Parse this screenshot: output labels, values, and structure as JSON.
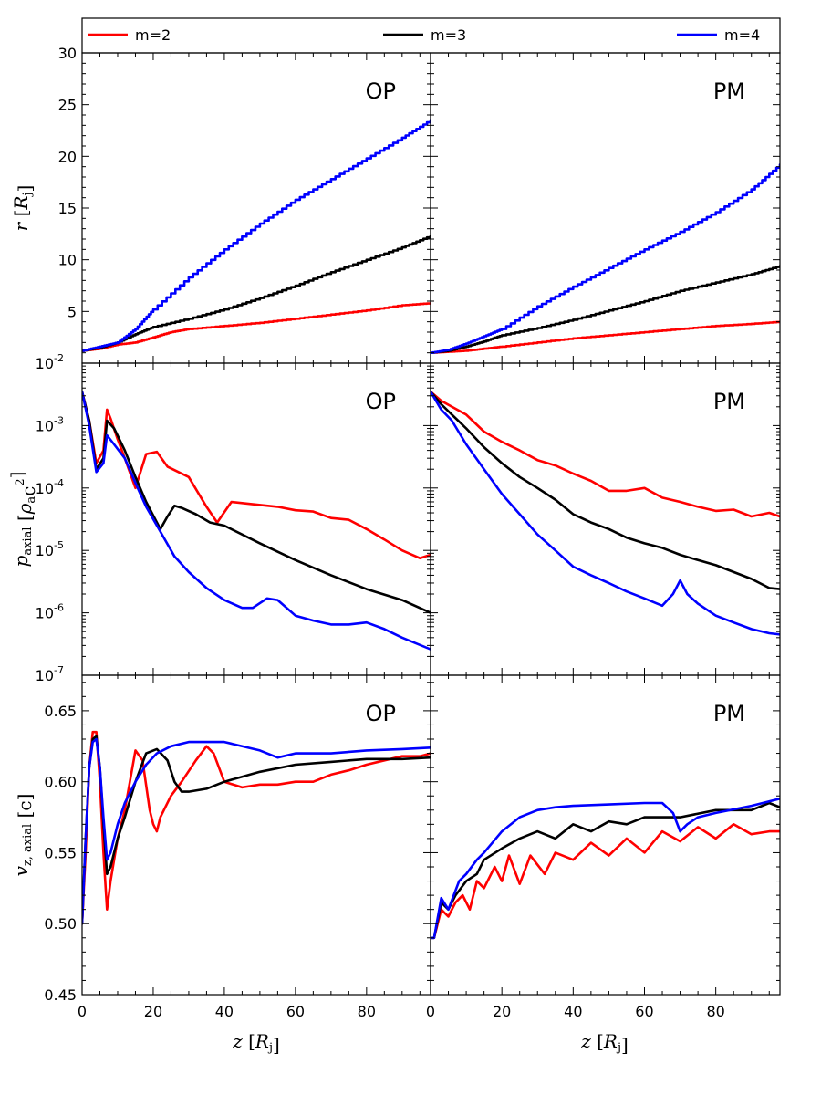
{
  "colors": {
    "m2": "#ff0000",
    "m3": "#000000",
    "m4": "#0000ff"
  },
  "legend": [
    {
      "label": "m=2",
      "color": "#ff0000"
    },
    {
      "label": "m=3",
      "color": "#000000"
    },
    {
      "label": "m=4",
      "color": "#0000ff"
    }
  ],
  "axes": {
    "xlabel": "z [Rj]",
    "xlim": [
      0,
      98
    ],
    "xticks": [
      0,
      20,
      40,
      60,
      80
    ],
    "rows": [
      {
        "ylabel": "r [Rj]",
        "scale": "linear",
        "ylim": [
          0,
          30
        ],
        "yticks": [
          0,
          5,
          10,
          15,
          20,
          25,
          30
        ],
        "ytick_labels": [
          "",
          "5",
          "10",
          "15",
          "20",
          "25",
          "30"
        ]
      },
      {
        "ylabel": "p_axial [ρa c²]",
        "scale": "log",
        "ylim": [
          1e-07,
          0.01
        ],
        "yticks": [
          1e-07,
          1e-06,
          1e-05,
          0.0001,
          0.001,
          0.01
        ],
        "ytick_labels": [
          "10",
          "10",
          "10",
          "10",
          "10",
          "10"
        ],
        "ytick_exps": [
          "-7",
          "-6",
          "-5",
          "-4",
          "-3",
          "-2"
        ]
      },
      {
        "ylabel": "v_z,axial [c]",
        "scale": "linear",
        "ylim": [
          0.45,
          0.675
        ],
        "yticks": [
          0.45,
          0.5,
          0.55,
          0.6,
          0.65
        ],
        "ytick_labels": [
          "0.45",
          "0.50",
          "0.55",
          "0.60",
          "0.65"
        ]
      }
    ]
  },
  "chart_data": [
    {
      "type": "line",
      "panel": "OP",
      "quantity": "r",
      "series": [
        {
          "name": "m=2",
          "x": [
            0,
            5,
            10,
            15,
            20,
            25,
            30,
            40,
            50,
            60,
            70,
            80,
            90,
            98
          ],
          "y": [
            1.2,
            1.4,
            1.8,
            2.0,
            2.5,
            3.0,
            3.3,
            3.6,
            3.9,
            4.3,
            4.7,
            5.1,
            5.6,
            5.8
          ]
        },
        {
          "name": "m=3",
          "x": [
            0,
            5,
            10,
            15,
            20,
            30,
            40,
            50,
            60,
            70,
            80,
            90,
            98
          ],
          "y": [
            1.2,
            1.5,
            2.0,
            2.8,
            3.5,
            4.3,
            5.2,
            6.3,
            7.5,
            8.8,
            10.0,
            11.2,
            12.3
          ]
        },
        {
          "name": "m=4",
          "x": [
            0,
            5,
            10,
            15,
            20,
            30,
            40,
            50,
            60,
            70,
            80,
            90,
            98
          ],
          "y": [
            1.2,
            1.6,
            2.0,
            3.3,
            5.2,
            8.3,
            11.0,
            13.5,
            15.8,
            17.8,
            19.8,
            21.8,
            23.5
          ]
        }
      ]
    },
    {
      "type": "line",
      "panel": "PM",
      "quantity": "r",
      "series": [
        {
          "name": "m=2",
          "x": [
            0,
            5,
            10,
            15,
            20,
            30,
            40,
            50,
            60,
            70,
            80,
            90,
            98
          ],
          "y": [
            1.0,
            1.1,
            1.2,
            1.4,
            1.6,
            2.0,
            2.4,
            2.7,
            3.0,
            3.3,
            3.6,
            3.8,
            4.0
          ]
        },
        {
          "name": "m=3",
          "x": [
            0,
            5,
            10,
            15,
            20,
            30,
            40,
            50,
            60,
            70,
            80,
            90,
            98
          ],
          "y": [
            1.0,
            1.2,
            1.6,
            2.1,
            2.7,
            3.4,
            4.2,
            5.1,
            6.0,
            7.0,
            7.8,
            8.6,
            9.4
          ]
        },
        {
          "name": "m=4",
          "x": [
            0,
            5,
            10,
            15,
            20,
            30,
            40,
            50,
            60,
            70,
            80,
            90,
            98
          ],
          "y": [
            1.0,
            1.3,
            1.9,
            2.6,
            3.3,
            5.5,
            7.4,
            9.2,
            11.0,
            12.7,
            14.6,
            16.8,
            19.2
          ]
        }
      ]
    },
    {
      "type": "line",
      "panel": "OP",
      "quantity": "p_axial",
      "series": [
        {
          "name": "m=2",
          "x": [
            0,
            2,
            4,
            6,
            7,
            8,
            10,
            12,
            15,
            18,
            21,
            24,
            30,
            35,
            38,
            42,
            48,
            55,
            60,
            65,
            70,
            75,
            80,
            85,
            90,
            95,
            98
          ],
          "y": [
            0.0035,
            0.0012,
            0.00025,
            0.0004,
            0.0018,
            0.0013,
            0.0006,
            0.0003,
            0.0001,
            0.00035,
            0.00038,
            0.00022,
            0.00015,
            5e-05,
            2.8e-05,
            6e-05,
            5.5e-05,
            5e-05,
            4.4e-05,
            4.2e-05,
            3.3e-05,
            3.1e-05,
            2.2e-05,
            1.5e-05,
            1e-05,
            7.5e-06,
            8.5e-06
          ]
        },
        {
          "name": "m=3",
          "x": [
            0,
            2,
            4,
            6,
            7,
            9,
            12,
            15,
            18,
            22,
            24,
            26,
            28,
            32,
            36,
            40,
            50,
            60,
            70,
            80,
            90,
            98
          ],
          "y": [
            0.0035,
            0.0012,
            0.0002,
            0.0003,
            0.0012,
            0.0009,
            0.0004,
            0.00015,
            6e-05,
            2.2e-05,
            3.5e-05,
            5.2e-05,
            4.8e-05,
            3.8e-05,
            2.8e-05,
            2.5e-05,
            1.3e-05,
            7e-06,
            4e-06,
            2.4e-06,
            1.6e-06,
            1e-06
          ]
        },
        {
          "name": "m=4",
          "x": [
            0,
            2,
            4,
            6,
            7,
            9,
            12,
            15,
            18,
            22,
            26,
            30,
            35,
            40,
            45,
            48,
            52,
            55,
            60,
            65,
            70,
            75,
            80,
            85,
            90,
            98
          ],
          "y": [
            0.0035,
            0.001,
            0.00018,
            0.00025,
            0.0007,
            0.0005,
            0.0003,
            0.00012,
            5e-05,
            2e-05,
            8e-06,
            4.5e-06,
            2.5e-06,
            1.6e-06,
            1.2e-06,
            1.2e-06,
            1.7e-06,
            1.6e-06,
            9e-07,
            7.5e-07,
            6.5e-07,
            6.5e-07,
            7e-07,
            5.5e-07,
            4e-07,
            2.6e-07
          ]
        }
      ]
    },
    {
      "type": "line",
      "panel": "PM",
      "quantity": "p_axial",
      "series": [
        {
          "name": "m=2",
          "x": [
            0,
            3,
            6,
            10,
            15,
            20,
            25,
            30,
            35,
            40,
            45,
            50,
            55,
            60,
            65,
            70,
            75,
            80,
            85,
            90,
            95,
            98
          ],
          "y": [
            0.0035,
            0.0025,
            0.002,
            0.0015,
            0.0008,
            0.00055,
            0.0004,
            0.00028,
            0.00023,
            0.00017,
            0.00013,
            9e-05,
            9e-05,
            0.0001,
            7e-05,
            6e-05,
            5e-05,
            4.3e-05,
            4.5e-05,
            3.5e-05,
            4e-05,
            3.5e-05
          ]
        },
        {
          "name": "m=3",
          "x": [
            0,
            3,
            6,
            10,
            15,
            20,
            25,
            30,
            35,
            40,
            45,
            50,
            55,
            60,
            65,
            70,
            75,
            80,
            85,
            90,
            95,
            98
          ],
          "y": [
            0.0035,
            0.0022,
            0.0015,
            0.0009,
            0.00045,
            0.00025,
            0.00015,
            0.0001,
            6.5e-05,
            3.8e-05,
            2.8e-05,
            2.2e-05,
            1.6e-05,
            1.3e-05,
            1.1e-05,
            8.5e-06,
            7e-06,
            5.8e-06,
            4.5e-06,
            3.5e-06,
            2.5e-06,
            2.4e-06
          ]
        },
        {
          "name": "m=4",
          "x": [
            0,
            3,
            6,
            10,
            15,
            20,
            25,
            30,
            35,
            40,
            45,
            50,
            55,
            60,
            65,
            68,
            70,
            72,
            75,
            80,
            85,
            90,
            95,
            98
          ],
          "y": [
            0.0035,
            0.0018,
            0.0012,
            0.0005,
            0.0002,
            8e-05,
            3.8e-05,
            1.8e-05,
            1e-05,
            5.5e-06,
            4e-06,
            3e-06,
            2.2e-06,
            1.7e-06,
            1.3e-06,
            2e-06,
            3.3e-06,
            2e-06,
            1.4e-06,
            9e-07,
            7e-07,
            5.5e-07,
            4.7e-07,
            4.5e-07
          ]
        }
      ]
    },
    {
      "type": "line",
      "panel": "OP",
      "quantity": "v_z,axial",
      "series": [
        {
          "name": "m=2",
          "x": [
            0,
            1,
            2,
            3,
            4,
            5,
            6,
            7,
            8,
            10,
            12,
            15,
            17,
            19,
            20,
            21,
            22,
            25,
            28,
            32,
            35,
            37,
            40,
            45,
            50,
            55,
            60,
            65,
            70,
            75,
            80,
            85,
            90,
            95,
            98
          ],
          "y": [
            0.5,
            0.55,
            0.61,
            0.635,
            0.635,
            0.6,
            0.55,
            0.51,
            0.53,
            0.56,
            0.58,
            0.622,
            0.615,
            0.58,
            0.57,
            0.565,
            0.575,
            0.59,
            0.6,
            0.615,
            0.625,
            0.62,
            0.6,
            0.596,
            0.598,
            0.598,
            0.6,
            0.6,
            0.605,
            0.608,
            0.612,
            0.615,
            0.618,
            0.618,
            0.62
          ]
        },
        {
          "name": "m=3",
          "x": [
            0,
            1,
            2,
            3,
            4,
            5,
            6,
            7,
            8,
            10,
            12,
            15,
            18,
            21,
            24,
            26,
            28,
            30,
            35,
            40,
            50,
            60,
            70,
            80,
            90,
            98
          ],
          "y": [
            0.5,
            0.56,
            0.61,
            0.63,
            0.632,
            0.61,
            0.57,
            0.535,
            0.54,
            0.56,
            0.575,
            0.6,
            0.62,
            0.623,
            0.615,
            0.6,
            0.593,
            0.593,
            0.595,
            0.6,
            0.607,
            0.612,
            0.614,
            0.616,
            0.616,
            0.617
          ]
        },
        {
          "name": "m=4",
          "x": [
            0,
            1,
            2,
            3,
            4,
            5,
            6,
            7,
            8,
            10,
            12,
            15,
            18,
            21,
            25,
            30,
            40,
            50,
            55,
            60,
            70,
            80,
            90,
            98
          ],
          "y": [
            0.5,
            0.56,
            0.61,
            0.628,
            0.63,
            0.61,
            0.575,
            0.545,
            0.55,
            0.57,
            0.585,
            0.6,
            0.612,
            0.62,
            0.625,
            0.628,
            0.628,
            0.622,
            0.617,
            0.62,
            0.62,
            0.622,
            0.623,
            0.624
          ]
        }
      ]
    },
    {
      "type": "line",
      "panel": "PM",
      "quantity": "v_z,axial",
      "series": [
        {
          "name": "m=2",
          "x": [
            0,
            1,
            3,
            5,
            7,
            9,
            11,
            13,
            15,
            18,
            20,
            22,
            25,
            28,
            32,
            35,
            40,
            45,
            50,
            55,
            60,
            65,
            70,
            75,
            80,
            85,
            90,
            95,
            98
          ],
          "y": [
            0.49,
            0.49,
            0.51,
            0.505,
            0.515,
            0.52,
            0.51,
            0.53,
            0.525,
            0.54,
            0.53,
            0.548,
            0.528,
            0.548,
            0.535,
            0.55,
            0.545,
            0.557,
            0.548,
            0.56,
            0.55,
            0.565,
            0.558,
            0.568,
            0.56,
            0.57,
            0.563,
            0.565,
            0.565
          ]
        },
        {
          "name": "m=3",
          "x": [
            0,
            1,
            3,
            5,
            7,
            10,
            13,
            15,
            20,
            25,
            30,
            35,
            40,
            45,
            50,
            55,
            60,
            70,
            80,
            90,
            95,
            98
          ],
          "y": [
            0.49,
            0.49,
            0.515,
            0.51,
            0.52,
            0.53,
            0.535,
            0.545,
            0.553,
            0.56,
            0.565,
            0.56,
            0.57,
            0.565,
            0.572,
            0.57,
            0.575,
            0.575,
            0.58,
            0.58,
            0.585,
            0.582
          ]
        },
        {
          "name": "m=4",
          "x": [
            0,
            1,
            3,
            5,
            8,
            10,
            13,
            15,
            20,
            25,
            30,
            35,
            40,
            50,
            60,
            65,
            68,
            70,
            72,
            75,
            80,
            90,
            98
          ],
          "y": [
            0.49,
            0.49,
            0.518,
            0.51,
            0.53,
            0.535,
            0.545,
            0.55,
            0.565,
            0.575,
            0.58,
            0.582,
            0.583,
            0.584,
            0.585,
            0.585,
            0.578,
            0.565,
            0.57,
            0.575,
            0.578,
            0.583,
            0.588
          ]
        }
      ]
    }
  ]
}
